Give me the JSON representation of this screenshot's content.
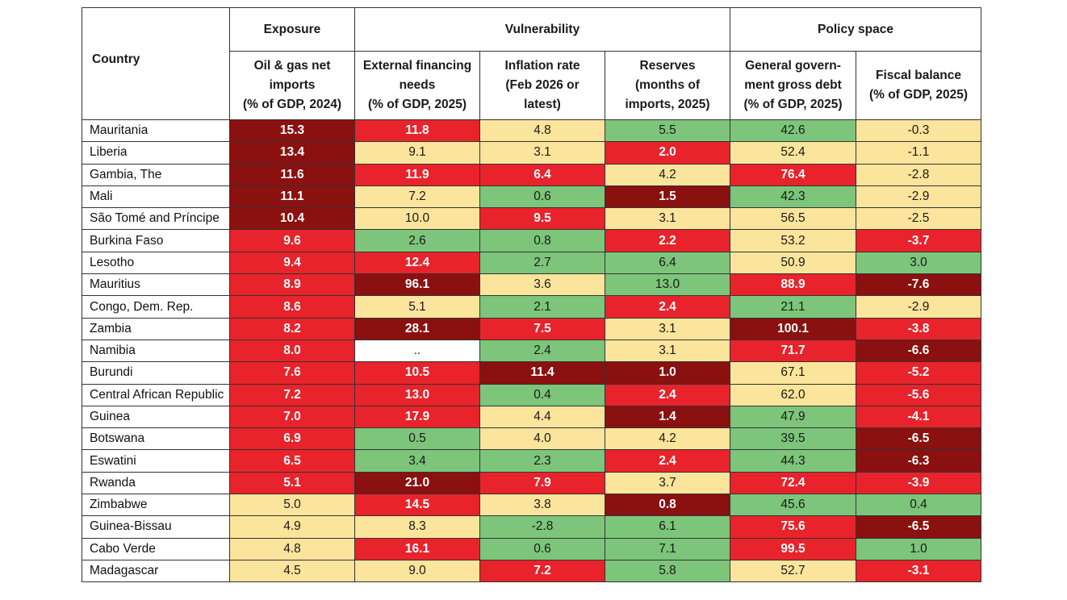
{
  "header": {
    "country": "Country",
    "groups": [
      {
        "label": "Exposure",
        "span": 1
      },
      {
        "label": "Vulnerability",
        "span": 3
      },
      {
        "label": "Policy space",
        "span": 2
      }
    ],
    "columns": [
      {
        "lines": [
          "Oil & gas net",
          "imports",
          "(% of GDP, 2024)"
        ]
      },
      {
        "lines": [
          "External financing",
          "needs",
          "(% of GDP, 2025)"
        ]
      },
      {
        "lines": [
          "Inflation rate",
          "(Feb 2026 or",
          "latest)"
        ]
      },
      {
        "lines": [
          "Reserves",
          "(months of",
          "imports, 2025)"
        ]
      },
      {
        "lines": [
          "General govern-",
          "ment gross debt",
          "(% of GDP, 2025)"
        ]
      },
      {
        "lines": [
          "Fiscal balance",
          "(% of GDP, 2025)"
        ]
      }
    ]
  },
  "colors": {
    "dark": "#8b1010",
    "red": "#e8232b",
    "yellow": "#fbe49b",
    "green": "#7cc57a",
    "none": "#ffffff"
  },
  "rows": [
    {
      "country": "Mauritania",
      "cells": [
        {
          "v": "15.3",
          "c": "dark"
        },
        {
          "v": "11.8",
          "c": "red"
        },
        {
          "v": "4.8",
          "c": "yellow"
        },
        {
          "v": "5.5",
          "c": "green"
        },
        {
          "v": "42.6",
          "c": "green"
        },
        {
          "v": "-0.3",
          "c": "yellow"
        }
      ]
    },
    {
      "country": "Liberia",
      "cells": [
        {
          "v": "13.4",
          "c": "dark"
        },
        {
          "v": "9.1",
          "c": "yellow"
        },
        {
          "v": "3.1",
          "c": "yellow"
        },
        {
          "v": "2.0",
          "c": "red"
        },
        {
          "v": "52.4",
          "c": "yellow"
        },
        {
          "v": "-1.1",
          "c": "yellow"
        }
      ]
    },
    {
      "country": "Gambia, The",
      "cells": [
        {
          "v": "11.6",
          "c": "dark"
        },
        {
          "v": "11.9",
          "c": "red"
        },
        {
          "v": "6.4",
          "c": "red"
        },
        {
          "v": "4.2",
          "c": "yellow"
        },
        {
          "v": "76.4",
          "c": "red"
        },
        {
          "v": "-2.8",
          "c": "yellow"
        }
      ]
    },
    {
      "country": "Mali",
      "cells": [
        {
          "v": "11.1",
          "c": "dark"
        },
        {
          "v": "7.2",
          "c": "yellow"
        },
        {
          "v": "0.6",
          "c": "green"
        },
        {
          "v": "1.5",
          "c": "dark"
        },
        {
          "v": "42.3",
          "c": "green"
        },
        {
          "v": "-2.9",
          "c": "yellow"
        }
      ]
    },
    {
      "country": "São Tomé and Príncipe",
      "cells": [
        {
          "v": "10.4",
          "c": "dark"
        },
        {
          "v": "10.0",
          "c": "yellow"
        },
        {
          "v": "9.5",
          "c": "red"
        },
        {
          "v": "3.1",
          "c": "yellow"
        },
        {
          "v": "56.5",
          "c": "yellow"
        },
        {
          "v": "-2.5",
          "c": "yellow"
        }
      ]
    },
    {
      "country": "Burkina Faso",
      "cells": [
        {
          "v": "9.6",
          "c": "red"
        },
        {
          "v": "2.6",
          "c": "green"
        },
        {
          "v": "0.8",
          "c": "green"
        },
        {
          "v": "2.2",
          "c": "red"
        },
        {
          "v": "53.2",
          "c": "yellow"
        },
        {
          "v": "-3.7",
          "c": "red"
        }
      ]
    },
    {
      "country": "Lesotho",
      "cells": [
        {
          "v": "9.4",
          "c": "red"
        },
        {
          "v": "12.4",
          "c": "red"
        },
        {
          "v": "2.7",
          "c": "green"
        },
        {
          "v": "6.4",
          "c": "green"
        },
        {
          "v": "50.9",
          "c": "yellow"
        },
        {
          "v": "3.0",
          "c": "green"
        }
      ]
    },
    {
      "country": "Mauritius",
      "cells": [
        {
          "v": "8.9",
          "c": "red"
        },
        {
          "v": "96.1",
          "c": "dark"
        },
        {
          "v": "3.6",
          "c": "yellow"
        },
        {
          "v": "13.0",
          "c": "green"
        },
        {
          "v": "88.9",
          "c": "red"
        },
        {
          "v": "-7.6",
          "c": "dark"
        }
      ]
    },
    {
      "country": "Congo, Dem. Rep.",
      "cells": [
        {
          "v": "8.6",
          "c": "red"
        },
        {
          "v": "5.1",
          "c": "yellow"
        },
        {
          "v": "2.1",
          "c": "green"
        },
        {
          "v": "2.4",
          "c": "red"
        },
        {
          "v": "21.1",
          "c": "green"
        },
        {
          "v": "-2.9",
          "c": "yellow"
        }
      ]
    },
    {
      "country": "Zambia",
      "cells": [
        {
          "v": "8.2",
          "c": "red"
        },
        {
          "v": "28.1",
          "c": "dark"
        },
        {
          "v": "7.5",
          "c": "red"
        },
        {
          "v": "3.1",
          "c": "yellow"
        },
        {
          "v": "100.1",
          "c": "dark"
        },
        {
          "v": "-3.8",
          "c": "red"
        }
      ]
    },
    {
      "country": "Namibia",
      "cells": [
        {
          "v": "8.0",
          "c": "red"
        },
        {
          "v": "..",
          "c": "none"
        },
        {
          "v": "2.4",
          "c": "green"
        },
        {
          "v": "3.1",
          "c": "yellow"
        },
        {
          "v": "71.7",
          "c": "red"
        },
        {
          "v": "-6.6",
          "c": "dark"
        }
      ]
    },
    {
      "country": "Burundi",
      "cells": [
        {
          "v": "7.6",
          "c": "red"
        },
        {
          "v": "10.5",
          "c": "red"
        },
        {
          "v": "11.4",
          "c": "dark"
        },
        {
          "v": "1.0",
          "c": "dark"
        },
        {
          "v": "67.1",
          "c": "yellow"
        },
        {
          "v": "-5.2",
          "c": "red"
        }
      ]
    },
    {
      "country": "Central African Republic",
      "cells": [
        {
          "v": "7.2",
          "c": "red"
        },
        {
          "v": "13.0",
          "c": "red"
        },
        {
          "v": "0.4",
          "c": "green"
        },
        {
          "v": "2.4",
          "c": "red"
        },
        {
          "v": "62.0",
          "c": "yellow"
        },
        {
          "v": "-5.6",
          "c": "red"
        }
      ]
    },
    {
      "country": "Guinea",
      "cells": [
        {
          "v": "7.0",
          "c": "red"
        },
        {
          "v": "17.9",
          "c": "red"
        },
        {
          "v": "4.4",
          "c": "yellow"
        },
        {
          "v": "1.4",
          "c": "dark"
        },
        {
          "v": "47.9",
          "c": "green"
        },
        {
          "v": "-4.1",
          "c": "red"
        }
      ]
    },
    {
      "country": "Botswana",
      "cells": [
        {
          "v": "6.9",
          "c": "red"
        },
        {
          "v": "0.5",
          "c": "green"
        },
        {
          "v": "4.0",
          "c": "yellow"
        },
        {
          "v": "4.2",
          "c": "yellow"
        },
        {
          "v": "39.5",
          "c": "green"
        },
        {
          "v": "-6.5",
          "c": "dark"
        }
      ]
    },
    {
      "country": "Eswatini",
      "cells": [
        {
          "v": "6.5",
          "c": "red"
        },
        {
          "v": "3.4",
          "c": "green"
        },
        {
          "v": "2.3",
          "c": "green"
        },
        {
          "v": "2.4",
          "c": "red"
        },
        {
          "v": "44.3",
          "c": "green"
        },
        {
          "v": "-6.3",
          "c": "dark"
        }
      ]
    },
    {
      "country": "Rwanda",
      "cells": [
        {
          "v": "5.1",
          "c": "red"
        },
        {
          "v": "21.0",
          "c": "dark"
        },
        {
          "v": "7.9",
          "c": "red"
        },
        {
          "v": "3.7",
          "c": "yellow"
        },
        {
          "v": "72.4",
          "c": "red"
        },
        {
          "v": "-3.9",
          "c": "red"
        }
      ]
    },
    {
      "country": "Zimbabwe",
      "cells": [
        {
          "v": "5.0",
          "c": "yellow"
        },
        {
          "v": "14.5",
          "c": "red"
        },
        {
          "v": "3.8",
          "c": "yellow"
        },
        {
          "v": "0.8",
          "c": "dark"
        },
        {
          "v": "45.6",
          "c": "green"
        },
        {
          "v": "0.4",
          "c": "green"
        }
      ]
    },
    {
      "country": "Guinea-Bissau",
      "cells": [
        {
          "v": "4.9",
          "c": "yellow"
        },
        {
          "v": "8.3",
          "c": "yellow"
        },
        {
          "v": "-2.8",
          "c": "green"
        },
        {
          "v": "6.1",
          "c": "green"
        },
        {
          "v": "75.6",
          "c": "red"
        },
        {
          "v": "-6.5",
          "c": "dark"
        }
      ]
    },
    {
      "country": "Cabo Verde",
      "cells": [
        {
          "v": "4.8",
          "c": "yellow"
        },
        {
          "v": "16.1",
          "c": "red"
        },
        {
          "v": "0.6",
          "c": "green"
        },
        {
          "v": "7.1",
          "c": "green"
        },
        {
          "v": "99.5",
          "c": "red"
        },
        {
          "v": "1.0",
          "c": "green"
        }
      ]
    },
    {
      "country": "Madagascar",
      "cells": [
        {
          "v": "4.5",
          "c": "yellow"
        },
        {
          "v": "9.0",
          "c": "yellow"
        },
        {
          "v": "7.2",
          "c": "red"
        },
        {
          "v": "5.8",
          "c": "green"
        },
        {
          "v": "52.7",
          "c": "yellow"
        },
        {
          "v": "-3.1",
          "c": "red"
        }
      ]
    }
  ]
}
